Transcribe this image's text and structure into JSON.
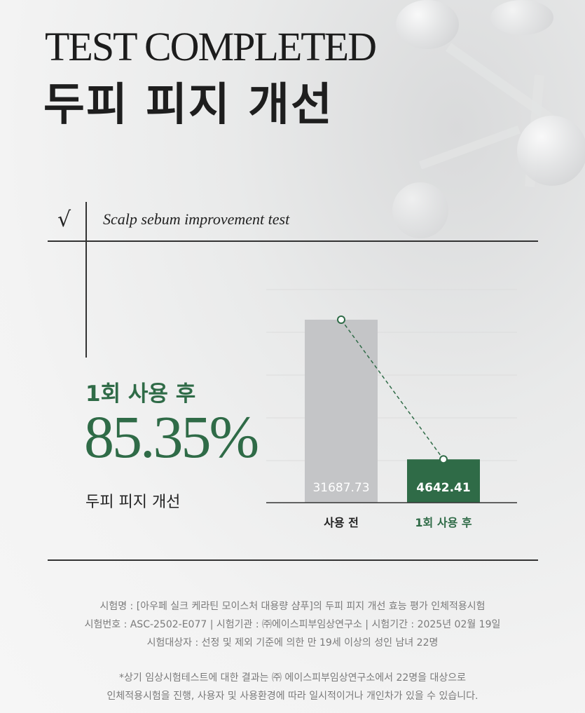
{
  "header": {
    "title_en": "TEST COMPLETED",
    "title_ko": "두피 피지 개선"
  },
  "section": {
    "check_icon": "checkmark-icon",
    "subtitle": "Scalp sebum improvement test"
  },
  "result": {
    "label": "1회 사용 후",
    "percent": "85.35%",
    "metric": "두피 피지 개선"
  },
  "colors": {
    "accent_green": "#2f6b47",
    "bar_gray": "#c4c5c7",
    "text_gray": "#7a7a7a"
  },
  "chart_data": {
    "type": "bar",
    "categories": [
      "사용 전",
      "1회 사용 후"
    ],
    "values": [
      31687.73,
      4642.41
    ],
    "value_labels": [
      "31687.73",
      "4642.41"
    ],
    "bar_colors": [
      "#c4c5c7",
      "#2f6b47"
    ],
    "trend_line": "dashed",
    "grid": true,
    "title": "",
    "xlabel": "",
    "ylabel": ""
  },
  "footer": {
    "lines": [
      "시험명 : [아우페 실크 케라틴 모이스처 대용량 샴푸]의 두피 피지 개선 효능 평가 인체적용시험",
      "시험번호 : ASC-2502-E077 | 시험기관 : ㈜에이스피부임상연구소 | 시험기간 : 2025년 02월 19일",
      "시험대상자 : 선정 및 제외 기준에 의한 만 19세 이상의 성인 남녀 22명"
    ],
    "notes": [
      "*상기 임상시험테스트에 대한 결과는 ㈜ 에이스피부임상연구소에서 22명을 대상으로",
      "인체적용시험을 진행, 사용자 및 사용환경에 따라 일시적이거나 개인차가 있을 수 있습니다."
    ]
  }
}
